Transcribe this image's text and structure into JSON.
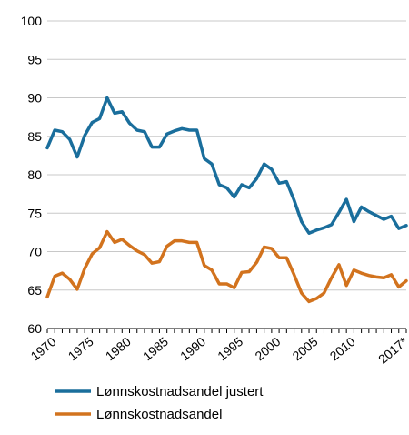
{
  "chart_data": {
    "type": "line",
    "title": "",
    "xlabel": "",
    "ylabel": "",
    "ylim": [
      60,
      100
    ],
    "yticks": [
      60,
      65,
      70,
      75,
      80,
      85,
      90,
      95,
      100
    ],
    "xlim": [
      1970,
      2018
    ],
    "xtick_labels": [
      "1970",
      "1975",
      "1980",
      "1985",
      "1990",
      "1995",
      "2000",
      "2005",
      "2010",
      "2017*"
    ],
    "grid": "horizontal",
    "legend_placement": "bottom",
    "x": [
      1970,
      1971,
      1972,
      1973,
      1974,
      1975,
      1976,
      1977,
      1978,
      1979,
      1980,
      1981,
      1982,
      1983,
      1984,
      1985,
      1986,
      1987,
      1988,
      1989,
      1990,
      1991,
      1992,
      1993,
      1994,
      1995,
      1996,
      1997,
      1998,
      1999,
      2000,
      2001,
      2002,
      2003,
      2004,
      2005,
      2006,
      2007,
      2008,
      2009,
      2010,
      2011,
      2012,
      2013,
      2014,
      2015,
      2016,
      2017,
      2018
    ],
    "series": [
      {
        "name": "Lønnskostnadsandel justert",
        "color": "#1a6e9c",
        "values": [
          83.5,
          85.8,
          85.6,
          84.6,
          82.3,
          85.1,
          86.8,
          87.3,
          90.0,
          88.0,
          88.2,
          86.7,
          85.8,
          85.6,
          83.6,
          83.6,
          85.3,
          85.7,
          86.0,
          85.8,
          85.8,
          82.1,
          81.4,
          78.7,
          78.3,
          77.1,
          78.7,
          78.3,
          79.5,
          81.4,
          80.7,
          78.9,
          79.1,
          76.7,
          73.9,
          72.4,
          72.8,
          73.1,
          73.5,
          75.1,
          76.8,
          73.9,
          75.8,
          75.2,
          74.7,
          74.2,
          74.6,
          73.0,
          73.4
        ]
      },
      {
        "name": "Lønnskostnadsandel",
        "color": "#d2731e",
        "values": [
          64.1,
          66.8,
          67.2,
          66.4,
          65.1,
          67.8,
          69.7,
          70.5,
          72.6,
          71.2,
          71.6,
          70.8,
          70.1,
          69.6,
          68.5,
          68.7,
          70.7,
          71.4,
          71.4,
          71.2,
          71.2,
          68.2,
          67.6,
          65.8,
          65.8,
          65.3,
          67.3,
          67.4,
          68.6,
          70.6,
          70.4,
          69.2,
          69.2,
          67.0,
          64.6,
          63.5,
          63.9,
          64.6,
          66.6,
          68.3,
          65.6,
          67.6,
          67.2,
          66.9,
          66.7,
          66.6,
          67.0,
          65.4,
          66.2
        ]
      }
    ]
  }
}
